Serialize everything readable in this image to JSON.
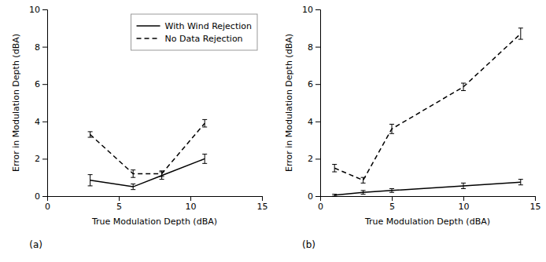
{
  "chart_data": [
    {
      "type": "line",
      "x": [
        3,
        6,
        8,
        11
      ],
      "series": [
        {
          "name": "With Wind Rejection",
          "color": "#000000",
          "line_style": "solid",
          "values": [
            0.85,
            0.5,
            1.1,
            2.0
          ],
          "yerr": [
            0.3,
            0.15,
            0.2,
            0.25
          ]
        },
        {
          "name": "No Data Rejection",
          "color": "#000000",
          "line_style": "dashed",
          "values": [
            3.3,
            1.2,
            1.2,
            3.9
          ],
          "yerr": [
            0.15,
            0.2,
            0.15,
            0.2
          ]
        }
      ],
      "xlim": [
        0,
        15
      ],
      "ylim": [
        0,
        10
      ],
      "xticks": [
        0,
        5,
        10,
        15
      ],
      "yticks": [
        0,
        2,
        4,
        6,
        8,
        10
      ],
      "xlabel": "True Modulation Depth (dBA)",
      "ylabel": "Error in Modulation Depth (dBA)",
      "annotations": [
        "(a)"
      ],
      "legend": "upper right"
    },
    {
      "type": "line",
      "x": [
        1,
        3,
        5,
        10,
        14
      ],
      "series": [
        {
          "name": "With Wind Rejection",
          "color": "#000000",
          "line_style": "solid",
          "values": [
            0.05,
            0.2,
            0.3,
            0.55,
            0.75
          ],
          "yerr": [
            0.05,
            0.1,
            0.1,
            0.15,
            0.15
          ]
        },
        {
          "name": "No Data Rejection",
          "color": "#000000",
          "line_style": "dashed",
          "values": [
            1.5,
            0.85,
            3.6,
            5.85,
            8.7
          ],
          "yerr": [
            0.2,
            0.15,
            0.25,
            0.2,
            0.3
          ]
        }
      ],
      "xlim": [
        0,
        15
      ],
      "ylim": [
        0,
        10
      ],
      "xticks": [
        0,
        5,
        10,
        15
      ],
      "yticks": [
        0,
        2,
        4,
        6,
        8,
        10
      ],
      "xlabel": "True Modulation Depth (dBA)",
      "ylabel": "Error in Modulation Depth (dBA)",
      "annotations": [
        "(b)"
      ],
      "legend": false
    }
  ]
}
